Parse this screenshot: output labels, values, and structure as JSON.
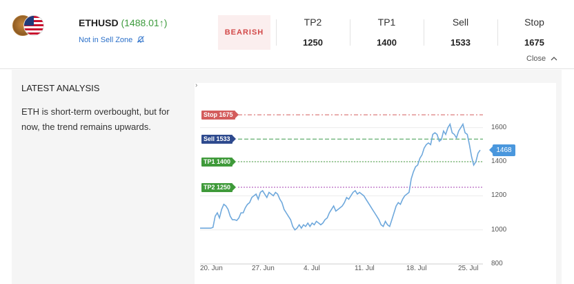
{
  "header": {
    "symbol": "ETHUSD",
    "price": "(1488.01↑)",
    "zone_status": "Not in Sell Zone",
    "zone_icon": "bell-off-icon",
    "bias": "BEARISH",
    "levels": [
      {
        "label": "TP2",
        "value": "1250"
      },
      {
        "label": "TP1",
        "value": "1400"
      },
      {
        "label": "Sell",
        "value": "1533"
      },
      {
        "label": "Stop",
        "value": "1675"
      }
    ],
    "close_label": "Close"
  },
  "analysis": {
    "title": "LATEST ANALYSIS",
    "text": "ETH is short-term overbought, but for now, the trend remains upwards."
  },
  "colors": {
    "accent": "#2a6fc9",
    "bearish": "#d24848",
    "price_up": "#3c9a3c",
    "line": "#6ea8dc",
    "stop": "#d35c5c",
    "sell": "#2e4a8e",
    "tp": "#3f9a3a",
    "tp2_line": "#a53fb0"
  },
  "chart_data": {
    "type": "line",
    "series": [
      {
        "values": [
          1010,
          1010,
          1010,
          1010,
          1010,
          1010,
          1015,
          1080,
          1100,
          1070,
          1120,
          1150,
          1140,
          1120,
          1080,
          1060,
          1060,
          1055,
          1070,
          1100,
          1100,
          1130,
          1150,
          1160,
          1190,
          1200,
          1210,
          1180,
          1220,
          1230,
          1210,
          1190,
          1220,
          1210,
          1200,
          1220,
          1210,
          1180,
          1160,
          1120,
          1100,
          1080,
          1060,
          1020,
          1000,
          1010,
          1030,
          1010,
          1030,
          1020,
          1040,
          1020,
          1040,
          1030,
          1050,
          1040,
          1030,
          1040,
          1060,
          1070,
          1100,
          1120,
          1140,
          1110,
          1120,
          1130,
          1140,
          1160,
          1190,
          1180,
          1200,
          1220,
          1230,
          1210,
          1220,
          1210,
          1200,
          1180,
          1160,
          1140,
          1120,
          1100,
          1080,
          1060,
          1030,
          1020,
          1050,
          1030,
          1020,
          1060,
          1100,
          1140,
          1160,
          1150,
          1180,
          1200,
          1210,
          1220,
          1300,
          1340,
          1370,
          1380,
          1420,
          1440,
          1480,
          1500,
          1510,
          1500,
          1560,
          1570,
          1560,
          1520,
          1530,
          1580,
          1560,
          1600,
          1620,
          1570,
          1560,
          1540,
          1580,
          1600,
          1620,
          1570,
          1560,
          1500,
          1430,
          1380,
          1400,
          1450,
          1468
        ]
      }
    ],
    "x_ticks": [
      "20. Jun",
      "27. Jun",
      "4. Jul",
      "11. Jul",
      "18. Jul",
      "25. Jul"
    ],
    "y_ticks": [
      "1600",
      "1400",
      "1200",
      "1000",
      "800"
    ],
    "ylim": [
      800,
      1700
    ],
    "current_label": "1468",
    "levels": [
      {
        "name": "Stop 1675",
        "value": 1675,
        "kind": "stop"
      },
      {
        "name": "Sell 1533",
        "value": 1533,
        "kind": "sell"
      },
      {
        "name": "TP1 1400",
        "value": 1400,
        "kind": "tp1"
      },
      {
        "name": "TP2 1250",
        "value": 1250,
        "kind": "tp2"
      }
    ],
    "grid": true
  }
}
